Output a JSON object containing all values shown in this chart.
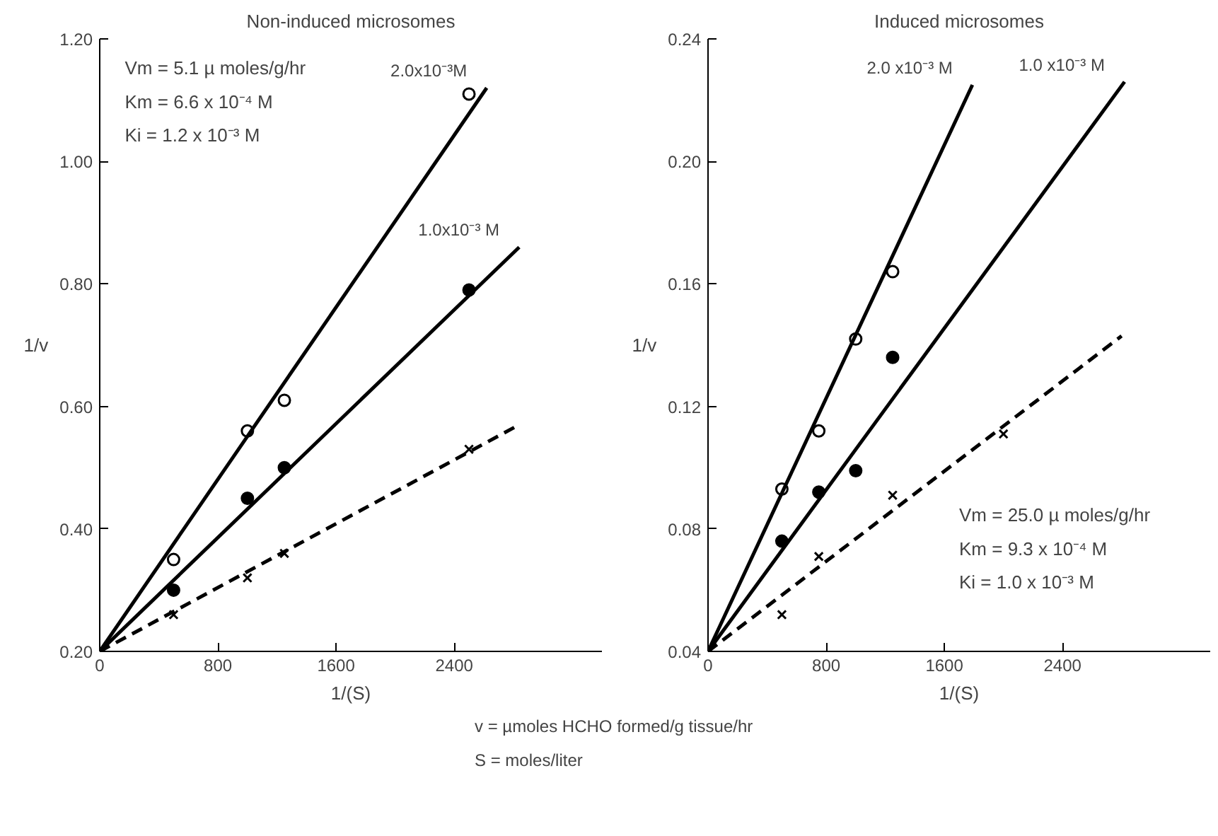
{
  "chart_data": [
    {
      "type": "scatter",
      "title": "Non-induced microsomes",
      "xlabel": "1/(S)",
      "ylabel": "1/v",
      "xlim": [
        0,
        3400
      ],
      "xticks": [
        0,
        800,
        1600,
        2400
      ],
      "ylim": [
        0.2,
        1.2
      ],
      "yticks": [
        {
          "value": 0.2,
          "label": "0.20"
        },
        {
          "value": 0.4,
          "label": "0.40"
        },
        {
          "value": 0.6,
          "label": "0.60"
        },
        {
          "value": 0.8,
          "label": "0.80"
        },
        {
          "value": 1.0,
          "label": "1.00"
        },
        {
          "value": 1.2,
          "label": "1.20"
        }
      ],
      "grid": false,
      "series": [
        {
          "color": "#ffffff",
          "marker": "circle",
          "x": [
            500,
            1000,
            1250,
            2500
          ],
          "values": [
            0.35,
            0.56,
            0.61,
            1.11
          ]
        },
        {
          "color": "#000000",
          "marker": "circle",
          "x": [
            500,
            1000,
            1250,
            2500
          ],
          "values": [
            0.3,
            0.45,
            0.5,
            0.79
          ]
        },
        {
          "color": "#000000",
          "marker": "cross",
          "x": [
            500,
            1000,
            1250,
            2500
          ],
          "values": [
            0.26,
            0.32,
            0.36,
            0.53
          ]
        },
        {
          "type": "line",
          "name": "2.0x10⁻³M",
          "color": "#000000",
          "line_style": "solid",
          "x": [
            0,
            2620
          ],
          "values": [
            0.2,
            1.12
          ]
        },
        {
          "type": "line",
          "name": "1.0x10⁻³ M",
          "color": "#000000",
          "line_style": "solid",
          "x": [
            0,
            2840
          ],
          "values": [
            0.2,
            0.86
          ]
        },
        {
          "type": "line",
          "color": "#000000",
          "line_style": "dashed",
          "x": [
            0,
            2840
          ],
          "values": [
            0.2,
            0.57
          ]
        }
      ],
      "annotations": [
        "Vm = 5.1 µ moles/g/hr",
        "Km = 6.6 x 10⁻⁴ M",
        "Ki = 1.2 x 10⁻³ M"
      ]
    },
    {
      "type": "scatter",
      "title": "Induced microsomes",
      "xlabel": "1/(S)",
      "ylabel": "1/v",
      "xlim": [
        0,
        3400
      ],
      "xticks": [
        0,
        800,
        1600,
        2400
      ],
      "ylim": [
        0.04,
        0.24
      ],
      "yticks": [
        {
          "value": 0.04,
          "label": "0.04"
        },
        {
          "value": 0.08,
          "label": "0.08"
        },
        {
          "value": 0.12,
          "label": "0.12"
        },
        {
          "value": 0.16,
          "label": "0.16"
        },
        {
          "value": 0.2,
          "label": "0.20"
        },
        {
          "value": 0.24,
          "label": "0.24"
        }
      ],
      "grid": false,
      "series": [
        {
          "color": "#ffffff",
          "marker": "circle",
          "x": [
            500,
            750,
            1000,
            1250
          ],
          "values": [
            0.093,
            0.112,
            0.142,
            0.164
          ]
        },
        {
          "color": "#000000",
          "marker": "circle",
          "x": [
            500,
            750,
            1000,
            1250
          ],
          "values": [
            0.076,
            0.092,
            0.099,
            0.136
          ]
        },
        {
          "color": "#000000",
          "marker": "cross",
          "x": [
            500,
            750,
            1250,
            2000
          ],
          "values": [
            0.052,
            0.071,
            0.091,
            0.111
          ]
        },
        {
          "type": "line",
          "name": "2.0 x10⁻³ M",
          "color": "#000000",
          "line_style": "solid",
          "x": [
            0,
            1790
          ],
          "values": [
            0.04,
            0.225
          ]
        },
        {
          "type": "line",
          "name": "1.0 x10⁻³ M",
          "color": "#000000",
          "line_style": "solid",
          "x": [
            0,
            2820
          ],
          "values": [
            0.04,
            0.226
          ]
        },
        {
          "type": "line",
          "color": "#000000",
          "line_style": "dashed",
          "x": [
            0,
            2800
          ],
          "values": [
            0.04,
            0.143
          ]
        }
      ],
      "annotations": [
        "Vm = 25.0 µ moles/g/hr",
        "Km = 9.3 x 10⁻⁴ M",
        "Ki = 1.0 x 10⁻³ M"
      ]
    },
    {
      "type": "other",
      "annotations": [
        "v = µmoles HCHO formed/g tissue/hr",
        "S = moles/liter"
      ]
    }
  ]
}
